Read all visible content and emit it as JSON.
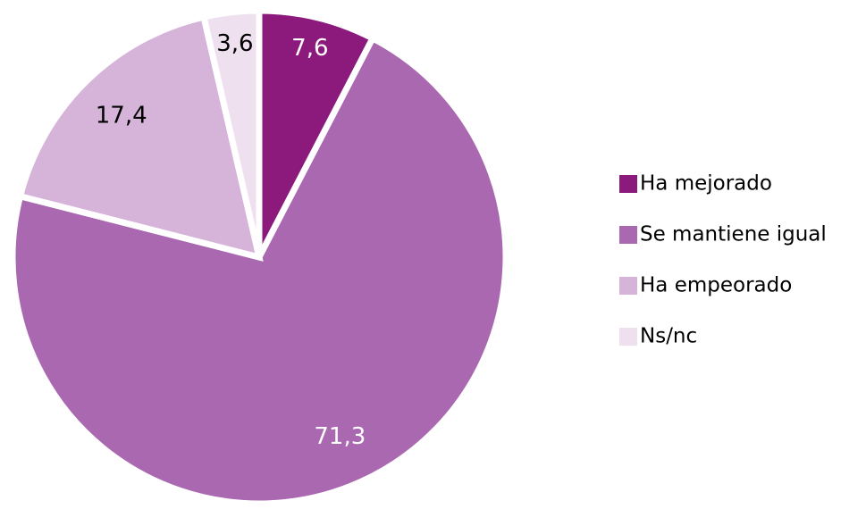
{
  "chart_data": {
    "type": "pie",
    "categories": [
      "Ha mejorado",
      "Se mantiene igual",
      "Ha empeorado",
      "Ns/nc"
    ],
    "values": [
      7.6,
      71.3,
      17.4,
      3.6
    ],
    "value_labels": [
      "7,6",
      "71,3",
      "17,4",
      "3,6"
    ],
    "colors": [
      "#8c1a7d",
      "#a968b0",
      "#d6b3d9",
      "#efe0ef"
    ],
    "label_colors": [
      "#ffffff",
      "#ffffff",
      "#000000",
      "#000000"
    ],
    "legend": "right"
  }
}
